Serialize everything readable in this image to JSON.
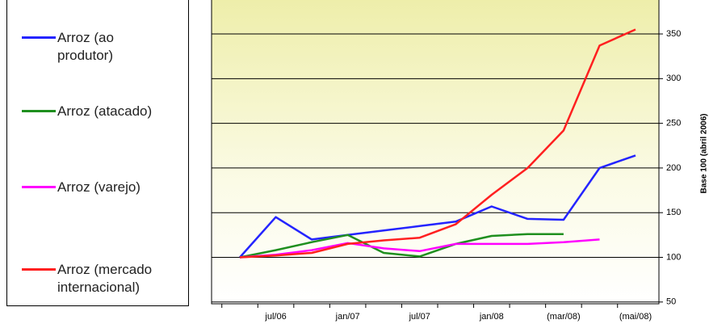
{
  "chart_data": {
    "type": "line",
    "y_label": "Base 100 (abril 2006)",
    "categories": [
      null,
      "jul/06",
      null,
      "jan/07",
      null,
      "jul/07",
      null,
      "jan/08",
      null,
      "(mar/08)",
      null,
      "(mai/08)"
    ],
    "series": [
      {
        "name": "Arroz (ao produtor)",
        "color": "#2424ff",
        "values": [
          100,
          145,
          120,
          125,
          130,
          135,
          140,
          157,
          143,
          142,
          200,
          214
        ]
      },
      {
        "name": "Arroz (atacado)",
        "color": "#1f8f1f",
        "values": [
          100,
          108,
          117,
          125,
          105,
          101,
          115,
          124,
          126,
          126,
          null,
          null
        ]
      },
      {
        "name": "Arroz (varejo)",
        "color": "#ff00ff",
        "values": [
          100,
          103,
          108,
          116,
          110,
          107,
          115,
          115,
          115,
          117,
          120,
          null
        ]
      },
      {
        "name": "Arroz (mercado internacional)",
        "color": "#ff2020",
        "values": [
          100,
          102,
          105,
          115,
          119,
          122,
          137,
          170,
          200,
          242,
          337,
          355
        ]
      }
    ],
    "ylim": [
      48,
      388
    ],
    "yticks": [
      50,
      100,
      150,
      200,
      250,
      300,
      350
    ],
    "grid": true,
    "legend": "left"
  }
}
